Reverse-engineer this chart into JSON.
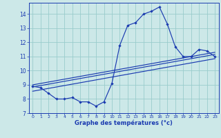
{
  "xlabel": "Graphe des températures (°c)",
  "xlim": [
    -0.5,
    23.5
  ],
  "ylim": [
    7,
    14.8
  ],
  "yticks": [
    7,
    8,
    9,
    10,
    11,
    12,
    13,
    14
  ],
  "xticks": [
    0,
    1,
    2,
    3,
    4,
    5,
    6,
    7,
    8,
    9,
    10,
    11,
    12,
    13,
    14,
    15,
    16,
    17,
    18,
    19,
    20,
    21,
    22,
    23
  ],
  "background_color": "#cce8e8",
  "grid_color": "#99cccc",
  "line_color": "#1a3ab0",
  "line1_x": [
    0,
    1,
    2,
    3,
    4,
    5,
    6,
    7,
    8,
    9,
    10,
    11,
    12,
    13,
    14,
    15,
    16,
    17,
    18,
    19,
    20,
    21,
    22,
    23
  ],
  "line1_y": [
    8.9,
    8.8,
    8.4,
    8.0,
    8.0,
    8.1,
    7.8,
    7.8,
    7.5,
    7.8,
    9.1,
    11.8,
    13.2,
    13.4,
    14.0,
    14.2,
    14.5,
    13.3,
    11.7,
    11.0,
    11.0,
    11.5,
    11.4,
    11.0
  ],
  "line2_x": [
    0,
    23
  ],
  "line2_y": [
    9.0,
    11.3
  ],
  "line3_x": [
    0,
    23
  ],
  "line3_y": [
    8.85,
    11.15
  ],
  "line4_x": [
    0,
    23
  ],
  "line4_y": [
    8.55,
    10.85
  ]
}
